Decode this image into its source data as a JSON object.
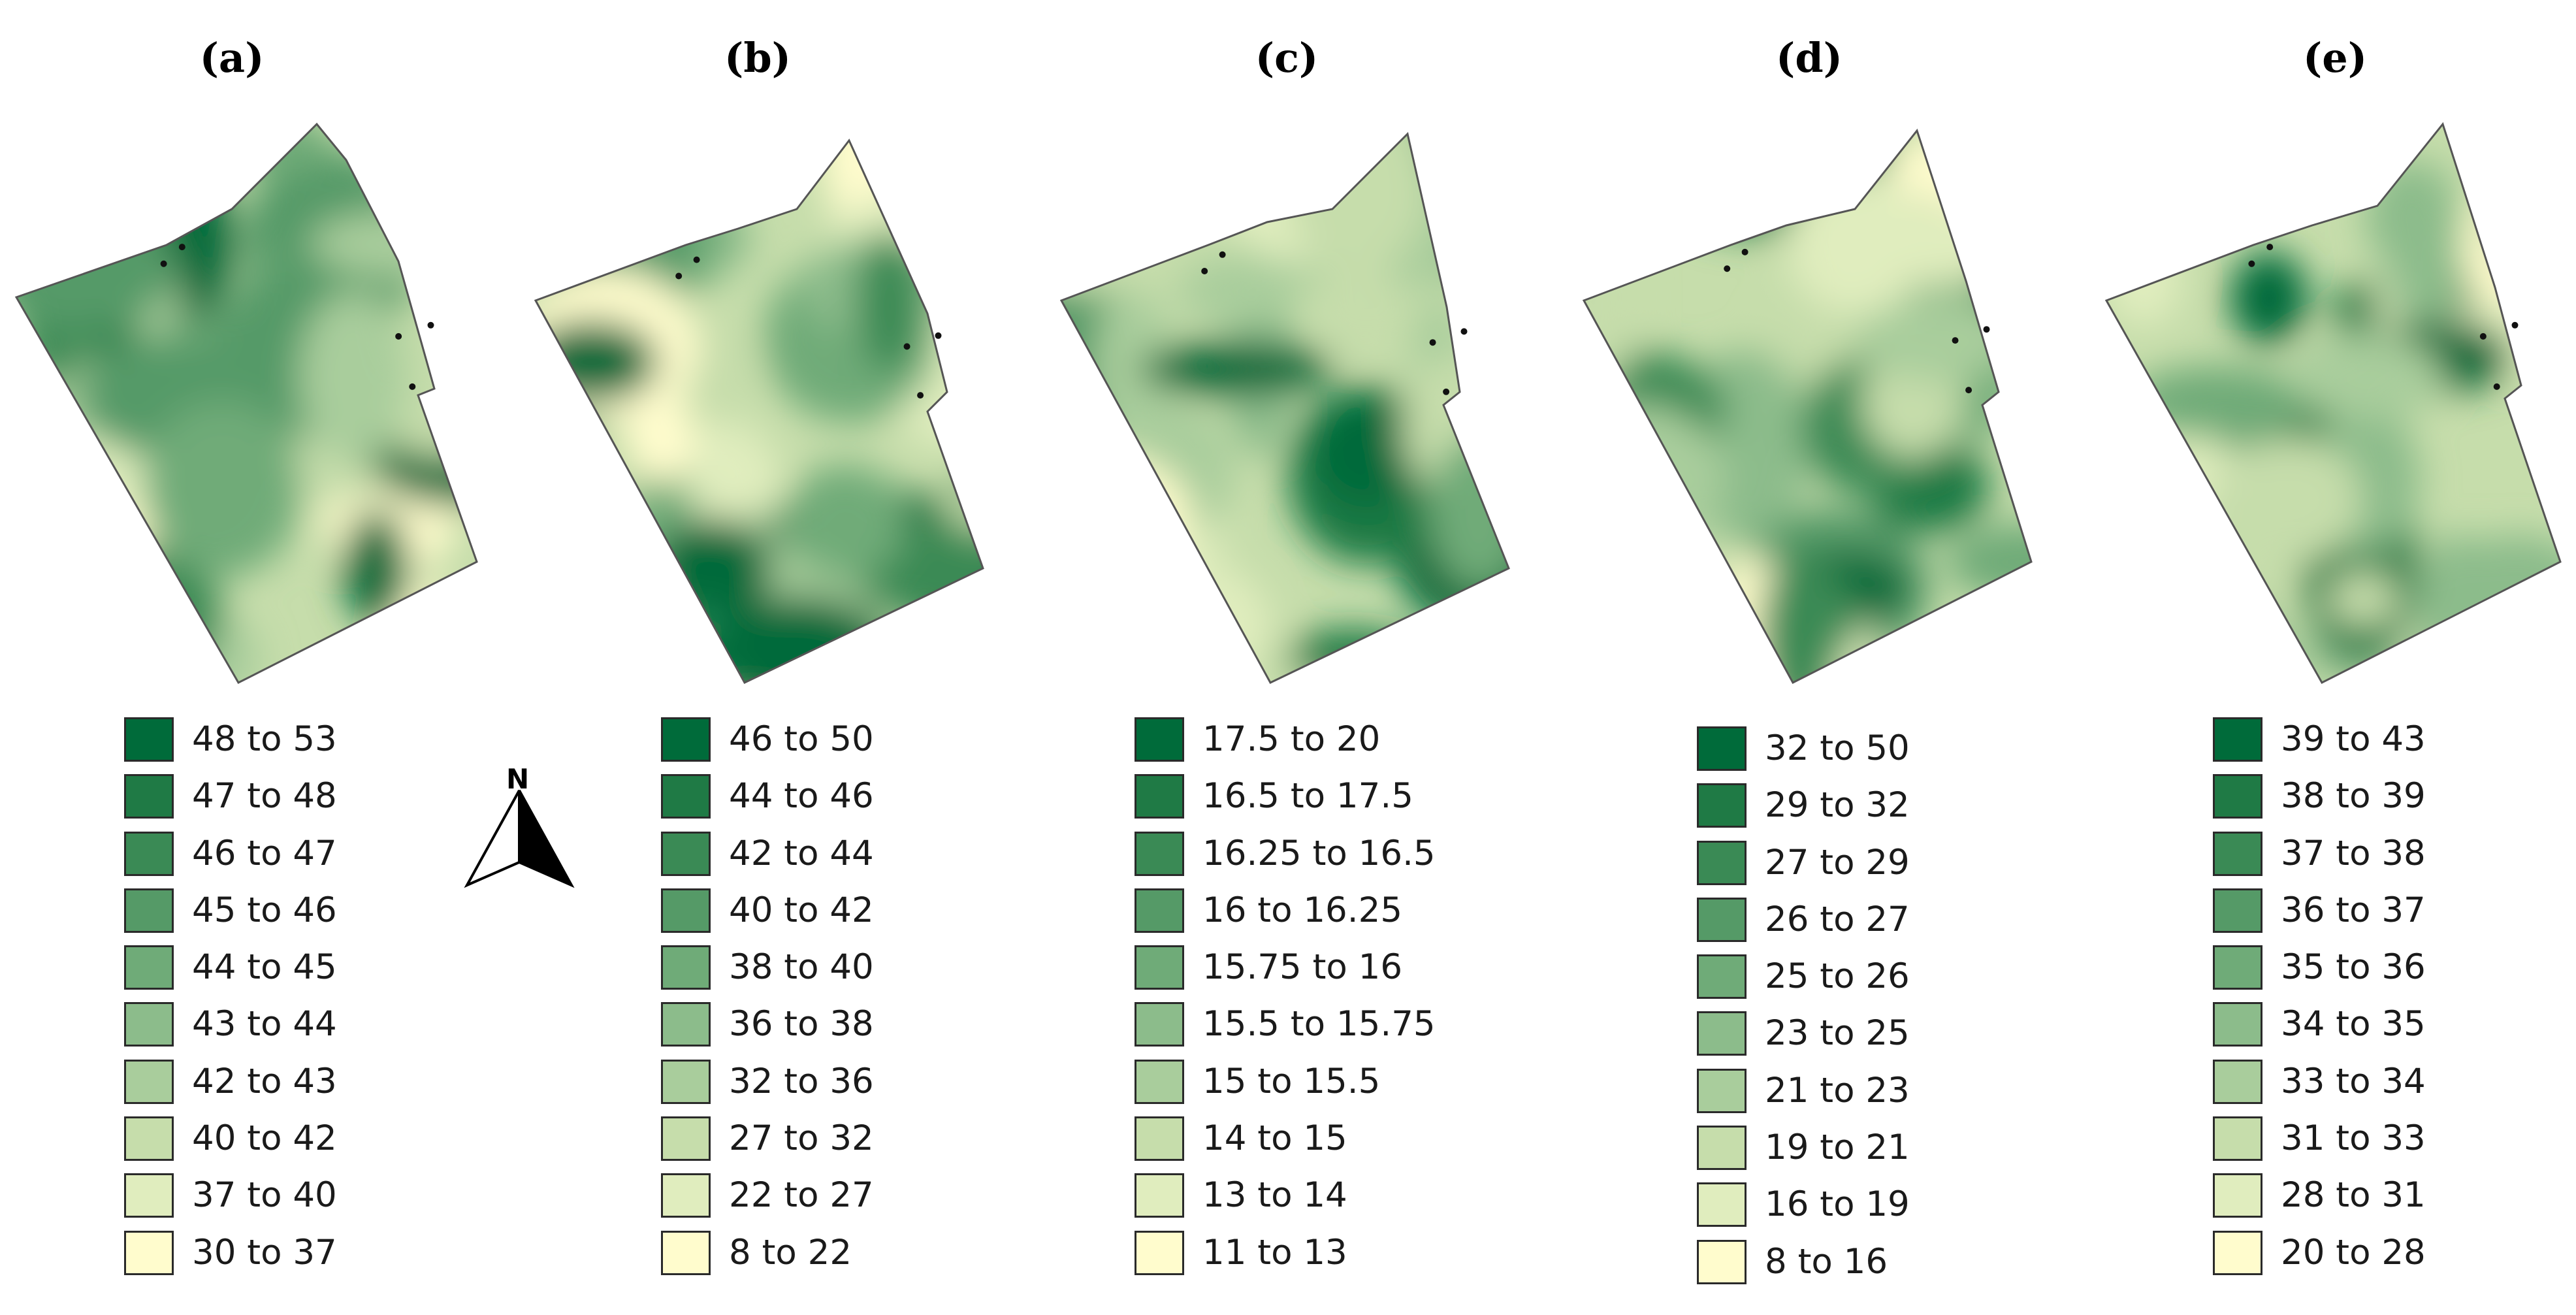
{
  "panels": [
    {
      "label": "(a)",
      "legend": [
        "48 to 53",
        "47 to 48",
        "46 to 47",
        "45 to 46",
        "44 to 45",
        "43 to 44",
        "42 to 43",
        "40 to 42",
        "37 to 40",
        "30 to 37"
      ]
    },
    {
      "label": "(b)",
      "legend": [
        "46 to 50",
        "44 to 46",
        "42 to 44",
        "40 to 42",
        "38 to 40",
        "36 to 38",
        "32 to 36",
        "27 to 32",
        "22 to 27",
        "8 to 22"
      ]
    },
    {
      "label": "(c)",
      "legend": [
        "17.5 to 20",
        "16.5 to 17.5",
        "16.25 to 16.5",
        "16 to 16.25",
        "15.75 to 16",
        "15.5 to 15.75",
        "15 to 15.5",
        "14 to 15",
        "13 to 14",
        "11 to 13"
      ]
    },
    {
      "label": "(d)",
      "legend": [
        "32 to 50",
        "29 to 32",
        "27 to 29",
        "26 to 27",
        "25 to 26",
        "23 to 25",
        "21 to 23",
        "19 to 21",
        "16 to 19",
        "8 to 16"
      ]
    },
    {
      "label": "(e)",
      "legend": [
        "39 to 43",
        "38 to 39",
        "37 to 38",
        "36 to 37",
        "35 to 36",
        "34 to 35",
        "33 to 34",
        "31 to 33",
        "28 to 31",
        "20 to 28"
      ]
    }
  ],
  "palette": [
    "#006b3a",
    "#1f7a45",
    "#3a8a55",
    "#559a67",
    "#6fab78",
    "#8cbc8b",
    "#a9cd9c",
    "#c6ddab",
    "#e0edbe",
    "#fffccd"
  ],
  "north_arrow": "N"
}
